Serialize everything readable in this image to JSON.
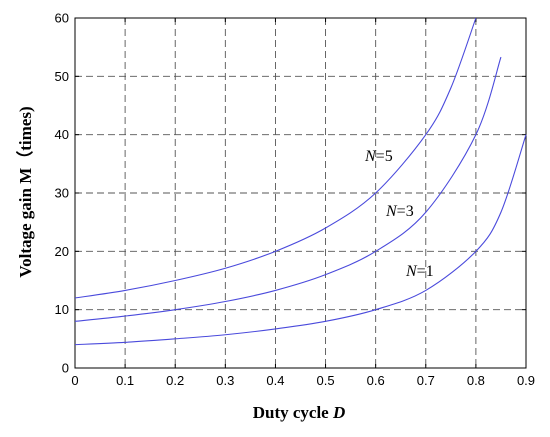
{
  "chart_data": {
    "type": "line",
    "xlabel_text": "Duty cycle ",
    "xlabel_var": "D",
    "ylabel": "Voltage gain M（times)",
    "xlim": [
      0,
      0.9
    ],
    "ylim": [
      0,
      60
    ],
    "x_ticks": [
      "0",
      "0.1",
      "0.2",
      "0.3",
      "0.4",
      "0.5",
      "0.6",
      "0.7",
      "0.8",
      "0.9"
    ],
    "y_ticks": [
      "0",
      "10",
      "20",
      "30",
      "40",
      "50",
      "60"
    ],
    "grid": true,
    "series_color": "#4a4adc",
    "series": [
      {
        "label_var": "N",
        "label_value": "=5",
        "x": [
          0,
          0.1,
          0.2,
          0.3,
          0.4,
          0.5,
          0.6,
          0.7,
          0.75,
          0.8
        ],
        "values": [
          12,
          13.3,
          15,
          17.1,
          20,
          24,
          30,
          40,
          48,
          60
        ]
      },
      {
        "label_var": "N",
        "label_value": "=3",
        "x": [
          0,
          0.1,
          0.2,
          0.3,
          0.4,
          0.5,
          0.6,
          0.7,
          0.8,
          0.85
        ],
        "values": [
          8,
          8.9,
          10,
          11.4,
          13.3,
          16,
          20,
          26.7,
          40,
          53.3
        ]
      },
      {
        "label_var": "N",
        "label_value": "=1",
        "x": [
          0,
          0.1,
          0.2,
          0.3,
          0.4,
          0.5,
          0.6,
          0.7,
          0.8,
          0.85,
          0.9
        ],
        "values": [
          4,
          4.4,
          5,
          5.7,
          6.7,
          8,
          10,
          13.3,
          20,
          26.7,
          40
        ]
      }
    ]
  }
}
